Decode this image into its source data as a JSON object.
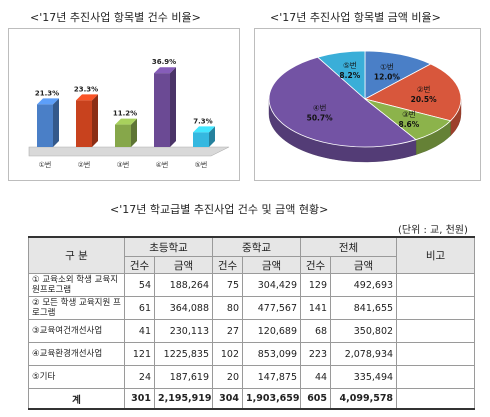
{
  "chart_data": [
    {
      "type": "bar",
      "title": "<'17년 추진사업 항목별 건수 비율>",
      "categories": [
        "①번",
        "②번",
        "③번",
        "④번",
        "⑤번"
      ],
      "values": [
        21.3,
        23.3,
        11.2,
        36.9,
        7.3
      ],
      "value_labels": [
        "21.3%",
        "23.3%",
        "11.2%",
        "36.9%",
        "7.3%"
      ],
      "colors": [
        "#4a7fc7",
        "#c8421e",
        "#86a74a",
        "#6b4a94",
        "#35b8e0"
      ]
    },
    {
      "type": "pie",
      "title": "<'17년 추진사업 항목별 금액 비율>",
      "slices": [
        {
          "label": "①번",
          "value": 12.0,
          "display": "12.0%",
          "color": "#4a7fc7"
        },
        {
          "label": "②번",
          "value": 20.5,
          "display": "20.5%",
          "color": "#d8573c"
        },
        {
          "label": "③번",
          "value": 8.6,
          "display": "8.6%",
          "color": "#8cb34b"
        },
        {
          "label": "④번",
          "value": 50.7,
          "display": "50.7%",
          "color": "#7353a4"
        },
        {
          "label": "⑤번",
          "value": 8.2,
          "display": "8.2%",
          "color": "#3aaed8"
        }
      ]
    },
    {
      "type": "table",
      "title": "<'17년 학교급별 추진사업 건수 및 금액 현황>",
      "unit": "(단위 : 교, 천원)",
      "header_top": {
        "category": "구 분",
        "elementary": "초등학교",
        "middle": "중학교",
        "total": "전체",
        "note": "비고"
      },
      "header_sub": {
        "count": "건수",
        "amount": "금액"
      },
      "rows": [
        {
          "category": "① 교육소외 학생 교육지원프로그램",
          "e_cnt": "54",
          "e_amt": "188,264",
          "m_cnt": "75",
          "m_amt": "304,429",
          "t_cnt": "129",
          "t_amt": "492,693"
        },
        {
          "category": "② 모든 학생 교육지원 프로그램",
          "e_cnt": "61",
          "e_amt": "364,088",
          "m_cnt": "80",
          "m_amt": "477,567",
          "t_cnt": "141",
          "t_amt": "841,655"
        },
        {
          "category": "③교육여건개선사업",
          "e_cnt": "41",
          "e_amt": "230,113",
          "m_cnt": "27",
          "m_amt": "120,689",
          "t_cnt": "68",
          "t_amt": "350,802"
        },
        {
          "category": "④교육환경개선사업",
          "e_cnt": "121",
          "e_amt": "1225,835",
          "m_cnt": "102",
          "m_amt": "853,099",
          "t_cnt": "223",
          "t_amt": "2,078,934"
        },
        {
          "category": "⑤기타",
          "e_cnt": "24",
          "e_amt": "187,619",
          "m_cnt": "20",
          "m_amt": "147,875",
          "t_cnt": "44",
          "t_amt": "335,494"
        }
      ],
      "total_row": {
        "category": "계",
        "e_cnt": "301",
        "e_amt": "2,195,919",
        "m_cnt": "304",
        "m_amt": "1,903,659",
        "t_cnt": "605",
        "t_amt": "4,099,578"
      }
    }
  ]
}
